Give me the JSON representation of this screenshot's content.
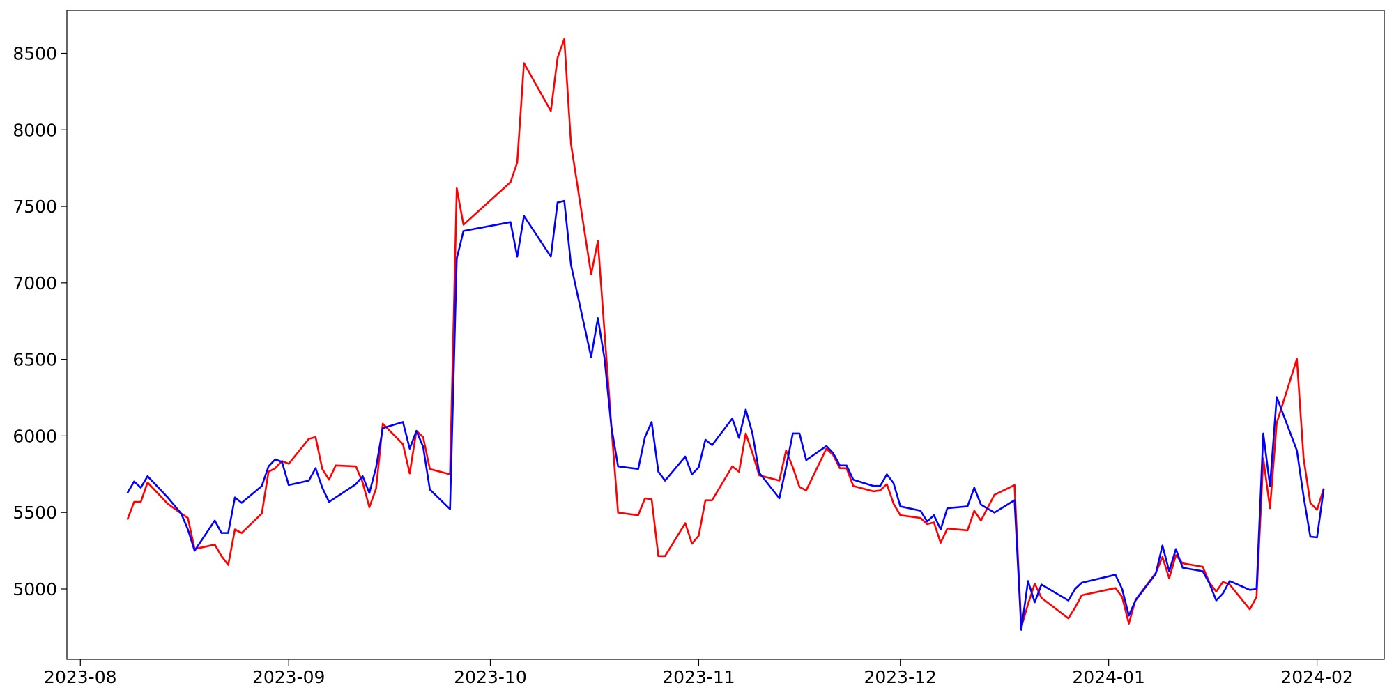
{
  "chart_data": {
    "type": "line",
    "x": [
      "2023-08-08",
      "2023-08-09",
      "2023-08-10",
      "2023-08-11",
      "2023-08-14",
      "2023-08-16",
      "2023-08-17",
      "2023-08-18",
      "2023-08-21",
      "2023-08-22",
      "2023-08-23",
      "2023-08-24",
      "2023-08-25",
      "2023-08-28",
      "2023-08-29",
      "2023-08-30",
      "2023-08-31",
      "2023-09-01",
      "2023-09-04",
      "2023-09-05",
      "2023-09-06",
      "2023-09-07",
      "2023-09-08",
      "2023-09-11",
      "2023-09-12",
      "2023-09-13",
      "2023-09-14",
      "2023-09-15",
      "2023-09-18",
      "2023-09-19",
      "2023-09-20",
      "2023-09-21",
      "2023-09-22",
      "2023-09-25",
      "2023-09-26",
      "2023-09-27",
      "2023-10-04",
      "2023-10-05",
      "2023-10-06",
      "2023-10-10",
      "2023-10-11",
      "2023-10-12",
      "2023-10-13",
      "2023-10-16",
      "2023-10-17",
      "2023-10-18",
      "2023-10-19",
      "2023-10-20",
      "2023-10-23",
      "2023-10-24",
      "2023-10-25",
      "2023-10-26",
      "2023-10-27",
      "2023-10-30",
      "2023-10-31",
      "2023-11-01",
      "2023-11-02",
      "2023-11-03",
      "2023-11-06",
      "2023-11-07",
      "2023-11-08",
      "2023-11-09",
      "2023-11-10",
      "2023-11-13",
      "2023-11-14",
      "2023-11-15",
      "2023-11-16",
      "2023-11-17",
      "2023-11-20",
      "2023-11-21",
      "2023-11-22",
      "2023-11-23",
      "2023-11-24",
      "2023-11-27",
      "2023-11-28",
      "2023-11-29",
      "2023-11-30",
      "2023-12-01",
      "2023-12-04",
      "2023-12-05",
      "2023-12-06",
      "2023-12-07",
      "2023-12-08",
      "2023-12-11",
      "2023-12-12",
      "2023-12-13",
      "2023-12-15",
      "2023-12-18",
      "2023-12-19",
      "2023-12-20",
      "2023-12-21",
      "2023-12-22",
      "2023-12-26",
      "2023-12-27",
      "2023-12-28",
      "2024-01-02",
      "2024-01-03",
      "2024-01-04",
      "2024-01-05",
      "2024-01-08",
      "2024-01-09",
      "2024-01-10",
      "2024-01-11",
      "2024-01-12",
      "2024-01-15",
      "2024-01-16",
      "2024-01-17",
      "2024-01-18",
      "2024-01-19",
      "2024-01-22",
      "2024-01-23",
      "2024-01-24",
      "2024-01-25",
      "2024-01-26",
      "2024-01-29",
      "2024-01-30",
      "2024-01-31",
      "2024-02-01",
      "2024-02-02"
    ],
    "series": [
      {
        "color": "#ff0000",
        "values": [
          5453,
          5569,
          5569,
          5696,
          5557,
          5493,
          5464,
          5261,
          5290,
          5215,
          5157,
          5389,
          5366,
          5493,
          5766,
          5789,
          5836,
          5818,
          5981,
          5992,
          5784,
          5714,
          5807,
          5801,
          5696,
          5534,
          5656,
          6080,
          5946,
          5755,
          6033,
          5992,
          5784,
          5749,
          7618,
          7380,
          7658,
          7786,
          8436,
          8123,
          8471,
          8593,
          7908,
          7055,
          7275,
          6672,
          6068,
          5499,
          5482,
          5592,
          5586,
          5215,
          5215,
          5430,
          5296,
          5348,
          5580,
          5580,
          5801,
          5766,
          6016,
          5888,
          5743,
          5708,
          5905,
          5795,
          5667,
          5644,
          5917,
          5876,
          5789,
          5789,
          5673,
          5638,
          5644,
          5685,
          5557,
          5482,
          5464,
          5424,
          5435,
          5302,
          5395,
          5383,
          5511,
          5447,
          5615,
          5679,
          4750,
          4901,
          5035,
          4942,
          4808,
          4878,
          4959,
          5006,
          4948,
          4774,
          4930,
          5104,
          5209,
          5070,
          5221,
          5168,
          5145,
          5041,
          4983,
          5046,
          5029,
          4867,
          4948,
          5853,
          5528,
          6085,
          6503,
          5853,
          5563,
          5517,
          5656
        ]
      },
      {
        "color": "#0000ff",
        "values": [
          5627,
          5702,
          5662,
          5737,
          5598,
          5493,
          5389,
          5250,
          5447,
          5366,
          5366,
          5598,
          5563,
          5673,
          5801,
          5847,
          5830,
          5679,
          5708,
          5789,
          5662,
          5569,
          5598,
          5685,
          5737,
          5627,
          5795,
          6051,
          6091,
          5917,
          6033,
          5929,
          5650,
          5522,
          7159,
          7339,
          7397,
          7171,
          7438,
          7171,
          7525,
          7536,
          7118,
          6515,
          6770,
          6503,
          6062,
          5801,
          5784,
          5992,
          6091,
          5766,
          5708,
          5865,
          5749,
          5795,
          5975,
          5940,
          6114,
          5987,
          6172,
          6016,
          5760,
          5592,
          5795,
          6016,
          6016,
          5842,
          5934,
          5888,
          5807,
          5807,
          5714,
          5673,
          5673,
          5749,
          5691,
          5540,
          5511,
          5441,
          5482,
          5389,
          5528,
          5540,
          5662,
          5551,
          5499,
          5580,
          4733,
          5052,
          4913,
          5029,
          4925,
          5000,
          5041,
          5093,
          5000,
          4826,
          4925,
          5099,
          5284,
          5116,
          5261,
          5139,
          5116,
          5035,
          4925,
          4971,
          5052,
          4994,
          5000,
          6016,
          5673,
          6254,
          5905,
          5604,
          5342,
          5337,
          5656
        ]
      }
    ],
    "xlim": [
      "2023-07-30",
      "2024-02-11"
    ],
    "xticks": [
      {
        "value": "2023-08-01",
        "label": "2023-08"
      },
      {
        "value": "2023-09-01",
        "label": "2023-09"
      },
      {
        "value": "2023-10-01",
        "label": "2023-10"
      },
      {
        "value": "2023-11-01",
        "label": "2023-11"
      },
      {
        "value": "2023-12-01",
        "label": "2023-12"
      },
      {
        "value": "2024-01-01",
        "label": "2024-01"
      },
      {
        "value": "2024-02-01",
        "label": "2024-02"
      }
    ],
    "ylim": [
      4540,
      8780
    ],
    "yticks": [
      5000,
      5500,
      6000,
      6500,
      7000,
      7500,
      8000,
      8500
    ],
    "grid": false
  }
}
